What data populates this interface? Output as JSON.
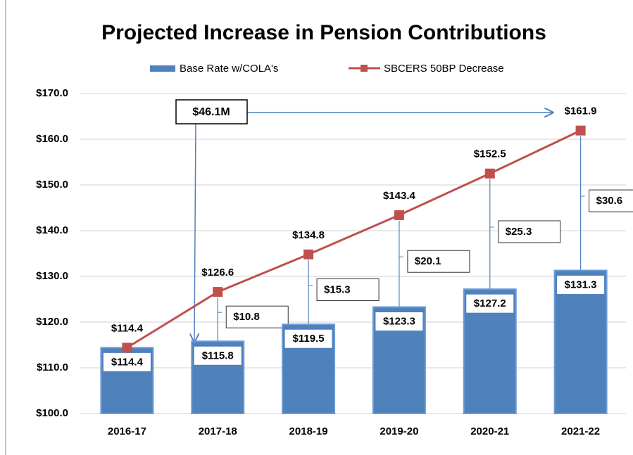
{
  "chart_data": {
    "type": "bar",
    "title": "Projected Increase in Pension Contributions",
    "categories": [
      "2016-17",
      "2017-18",
      "2018-19",
      "2019-20",
      "2020-21",
      "2021-22"
    ],
    "series": [
      {
        "name": "Base Rate w/COLA's",
        "type": "bar",
        "color": "#4f81bd",
        "values": [
          114.4,
          115.8,
          119.5,
          123.3,
          127.2,
          131.3
        ],
        "value_labels": [
          "$114.4",
          "$115.8",
          "$119.5",
          "$123.3",
          "$127.2",
          "$131.3"
        ]
      },
      {
        "name": "SBCERS 50BP Decrease",
        "type": "line",
        "color": "#c0504d",
        "values": [
          114.4,
          126.6,
          134.8,
          143.4,
          152.5,
          161.9
        ],
        "value_labels": [
          "$114.4",
          "$126.6",
          "$134.8",
          "$143.4",
          "$152.5",
          "$161.9"
        ]
      }
    ],
    "annotations": [
      "$46.1M",
      "$10.8",
      "$15.3",
      "$20.1",
      "$25.3",
      "$30.6"
    ],
    "ylim": [
      100,
      170
    ],
    "yticks": [
      {
        "value": 100,
        "label": "$100.0"
      },
      {
        "value": 110,
        "label": "$110.0"
      },
      {
        "value": 120,
        "label": "$120.0"
      },
      {
        "value": 130,
        "label": "$130.0"
      },
      {
        "value": 140,
        "label": "$140.0"
      },
      {
        "value": 150,
        "label": "$150.0"
      },
      {
        "value": 160,
        "label": "$160.0"
      },
      {
        "value": 170,
        "label": "$170.0"
      }
    ],
    "grid": true,
    "legend": "top"
  }
}
